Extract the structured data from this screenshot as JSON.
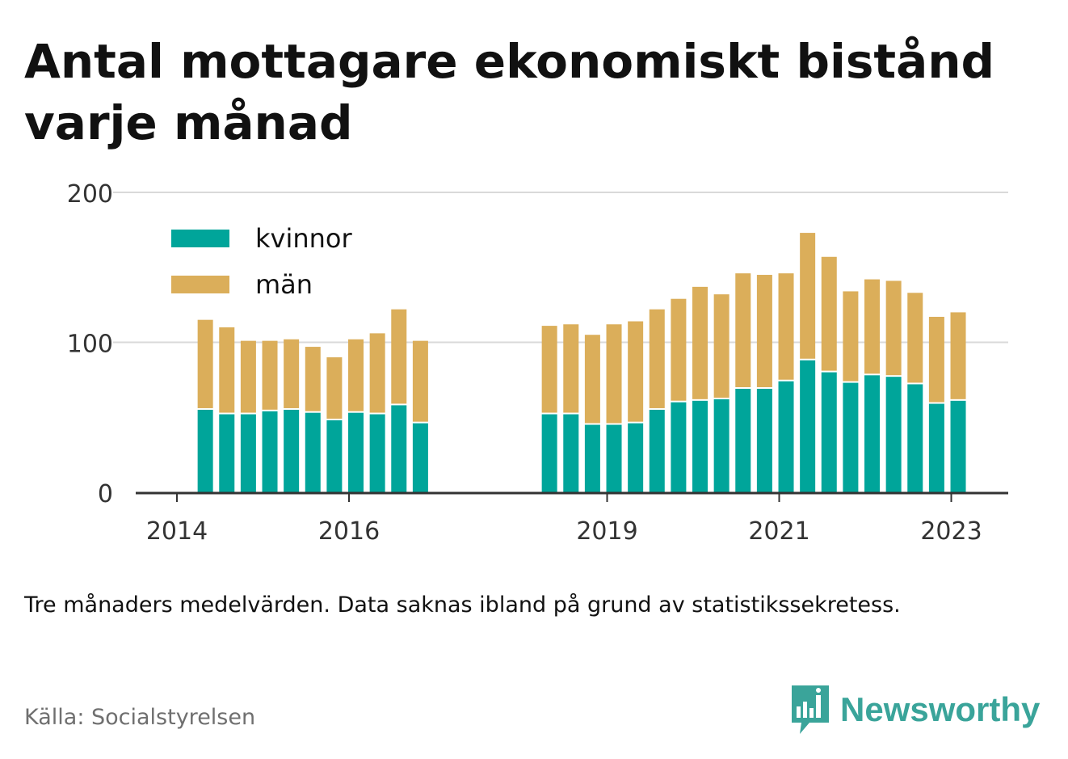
{
  "title": "Antal mottagare ekonomiskt bistånd varje månad",
  "note": "Tre månaders medelvärden. Data saknas ibland på grund av statistikssekretess.",
  "source": "Källa: Socialstyrelsen",
  "brand": {
    "name": "Newsworthy",
    "icon": "newsworthy-chart-bubble-icon",
    "color": "#3aa49a"
  },
  "colors": {
    "kvinnor": "#00a59a",
    "man": "#dbae5a",
    "grid": "#d9d9d9",
    "axis": "#333333"
  },
  "chart_data": {
    "type": "bar",
    "stacked": true,
    "y_ticks": [
      0,
      100,
      200
    ],
    "ylim": [
      0,
      200
    ],
    "x_tick_labels": [
      "2014",
      "2016",
      "2019",
      "2021",
      "2023"
    ],
    "x_tick_dates": [
      2014.0,
      2016.0,
      2019.0,
      2021.0,
      2023.0
    ],
    "legend_position": "top-left",
    "grid": true,
    "bar_dates": [
      2014.33,
      2014.58,
      2014.83,
      2015.08,
      2015.33,
      2015.58,
      2015.83,
      2016.08,
      2016.33,
      2016.58,
      2016.83,
      2018.33,
      2018.58,
      2018.83,
      2019.08,
      2019.33,
      2019.58,
      2019.83,
      2020.08,
      2020.33,
      2020.58,
      2020.83,
      2021.08,
      2021.33,
      2021.58,
      2021.83,
      2022.08,
      2022.33,
      2022.58,
      2022.83,
      2023.08
    ],
    "series": [
      {
        "name": "kvinnor",
        "values": [
          55,
          52,
          52,
          54,
          55,
          53,
          48,
          53,
          52,
          58,
          46,
          52,
          52,
          45,
          45,
          46,
          55,
          60,
          61,
          62,
          69,
          69,
          74,
          88,
          80,
          73,
          78,
          77,
          72,
          59,
          61
        ]
      },
      {
        "name": "män",
        "values": [
          60,
          58,
          49,
          47,
          47,
          44,
          42,
          49,
          54,
          64,
          55,
          59,
          60,
          60,
          67,
          68,
          67,
          69,
          76,
          70,
          77,
          76,
          72,
          85,
          77,
          61,
          64,
          64,
          61,
          58,
          59
        ]
      }
    ]
  }
}
